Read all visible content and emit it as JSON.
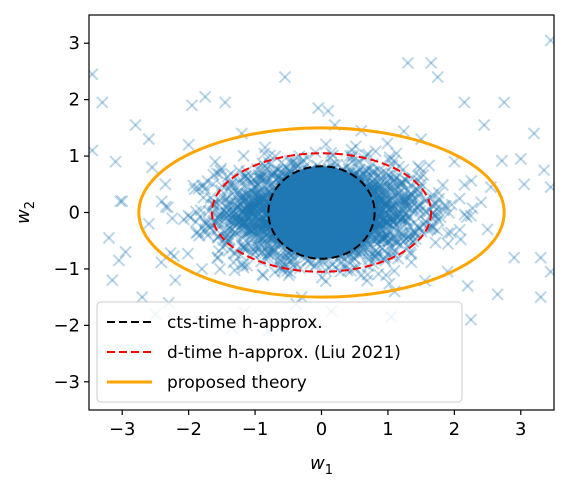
{
  "chart_data": {
    "type": "scatter",
    "title": "",
    "xlabel": "w",
    "xlabel_sub": "1",
    "ylabel": "w",
    "ylabel_sub": "2",
    "xlim": [
      -3.5,
      3.5
    ],
    "ylim": [
      -3.5,
      3.5
    ],
    "xticks": [
      -3,
      -2,
      -1,
      0,
      1,
      2,
      3
    ],
    "yticks": [
      -3,
      -2,
      -1,
      0,
      1,
      2,
      3
    ],
    "xtick_labels": [
      "−3",
      "−2",
      "−1",
      "0",
      "1",
      "2",
      "3"
    ],
    "ytick_labels": [
      "−3",
      "−2",
      "−1",
      "0",
      "1",
      "2",
      "3"
    ],
    "grid": false,
    "legend_position": "lower-left",
    "scatter": {
      "marker": "x",
      "color": "#1f77b4",
      "alpha": 0.3,
      "points": [
        [
          -3.45,
          2.45
        ],
        [
          -3.3,
          1.95
        ],
        [
          -3.45,
          1.1
        ],
        [
          -3.1,
          0.9
        ],
        [
          -3.2,
          -0.45
        ],
        [
          -3.05,
          -0.85
        ],
        [
          -3.15,
          -1.2
        ],
        [
          -2.95,
          -0.7
        ],
        [
          -2.8,
          1.55
        ],
        [
          -2.6,
          1.3
        ],
        [
          -2.55,
          0.8
        ],
        [
          -2.7,
          -1.5
        ],
        [
          -2.5,
          -1.8
        ],
        [
          -2.3,
          -1.6
        ],
        [
          -1.95,
          1.9
        ],
        [
          -1.75,
          2.05
        ],
        [
          -1.45,
          1.95
        ],
        [
          -1.35,
          -2.05
        ],
        [
          -2.2,
          -1.2
        ],
        [
          -2.0,
          1.2
        ],
        [
          -0.55,
          2.4
        ],
        [
          -0.05,
          1.85
        ],
        [
          0.1,
          1.8
        ],
        [
          0.2,
          1.55
        ],
        [
          -0.8,
          -2.1
        ],
        [
          0.15,
          -1.75
        ],
        [
          1.3,
          2.65
        ],
        [
          1.65,
          2.65
        ],
        [
          1.75,
          2.4
        ],
        [
          2.15,
          1.95
        ],
        [
          2.75,
          1.95
        ],
        [
          2.45,
          1.55
        ],
        [
          3.0,
          0.95
        ],
        [
          3.35,
          0.75
        ],
        [
          3.05,
          0.5
        ],
        [
          3.45,
          0.45
        ],
        [
          2.9,
          -0.8
        ],
        [
          3.3,
          -0.8
        ],
        [
          3.45,
          -1.05
        ],
        [
          3.3,
          -1.5
        ],
        [
          3.2,
          1.4
        ],
        [
          3.45,
          3.05
        ],
        [
          1.05,
          -1.85
        ],
        [
          2.25,
          -1.9
        ],
        [
          2.65,
          -1.45
        ],
        [
          2.2,
          -1.3
        ],
        [
          -2.35,
          0.5
        ],
        [
          -2.6,
          -0.2
        ],
        [
          2.5,
          -0.3
        ],
        [
          2.55,
          0.45
        ],
        [
          -1.8,
          -1.0
        ],
        [
          1.9,
          -1.05
        ],
        [
          1.5,
          1.3
        ],
        [
          -1.2,
          1.4
        ],
        [
          -0.3,
          -1.5
        ],
        [
          0.6,
          1.45
        ],
        [
          1.1,
          -1.4
        ],
        [
          -1.6,
          0.9
        ],
        [
          2.0,
          0.9
        ],
        [
          -3.0,
          0.2
        ]
      ]
    },
    "curves": [
      {
        "name": "cts-time h-approx.",
        "shape": "ellipse",
        "cx": 0,
        "cy": 0,
        "rx": 0.8,
        "ry": 0.82,
        "color": "#000000",
        "style": "dashed",
        "width": 2
      },
      {
        "name": "d-time h-approx. (Liu 2021)",
        "shape": "ellipse",
        "cx": 0,
        "cy": 0,
        "rx": 1.65,
        "ry": 1.05,
        "color": "#ff0000",
        "style": "dashed",
        "width": 2
      },
      {
        "name": "proposed theory",
        "shape": "ellipse",
        "cx": 0,
        "cy": 0,
        "rx": 2.75,
        "ry": 1.5,
        "color": "#ffa500",
        "style": "solid",
        "width": 3
      }
    ],
    "dense_core": {
      "cx": 0,
      "cy": 0,
      "rx": 0.8,
      "ry": 0.82,
      "color": "#1f77b4"
    }
  }
}
